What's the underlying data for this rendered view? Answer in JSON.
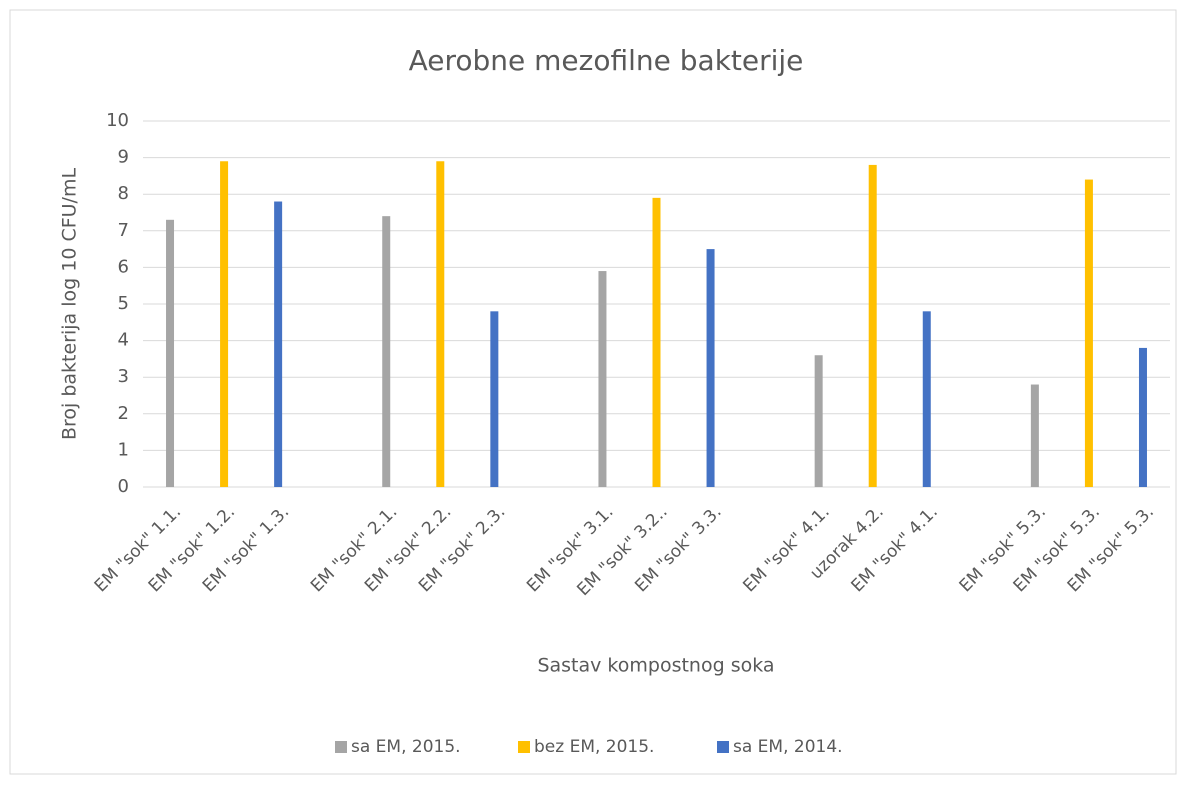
{
  "chart_data": {
    "type": "bar",
    "title": "Aerobne mezofilne bakterije",
    "x_label": "Sastav kompostnog soka",
    "y_label": "Broj bakterija log 10 CFU/mL",
    "categories": [
      "EM \"sok\" 1.1.",
      "EM \"sok\" 1.2.",
      "EM \"sok\" 1.3.",
      null,
      "EM \"sok\" 2.1.",
      "EM \"sok\" 2.2.",
      "EM \"sok\" 2.3.",
      null,
      "EM \"sok\" 3.1.",
      "EM \"sok\" 3.2..",
      "EM \"sok\" 3.3.",
      null,
      "EM \"sok\" 4.1.",
      "uzorak 4.2.",
      "EM \"sok\" 4.1.",
      null,
      "EM \"sok\" 5.3.",
      "EM \"sok\" 5.3.",
      "EM \"sok\" 5.3."
    ],
    "series": [
      {
        "name": "sa EM, 2015.",
        "color": "#a5a5a5",
        "values": [
          7.3,
          null,
          null,
          null,
          7.4,
          null,
          null,
          null,
          5.9,
          null,
          null,
          null,
          3.6,
          null,
          null,
          null,
          2.8,
          null,
          null
        ]
      },
      {
        "name": "bez EM, 2015.",
        "color": "#ffc000",
        "values": [
          null,
          8.9,
          null,
          null,
          null,
          8.9,
          null,
          null,
          null,
          7.9,
          null,
          null,
          null,
          8.8,
          null,
          null,
          null,
          8.4,
          null
        ]
      },
      {
        "name": "sa EM, 2014.",
        "color": "#4472c4",
        "values": [
          null,
          null,
          7.8,
          null,
          null,
          null,
          4.8,
          null,
          null,
          null,
          6.5,
          null,
          null,
          null,
          4.8,
          null,
          null,
          null,
          3.8
        ]
      }
    ],
    "ylim": [
      0,
      10
    ],
    "yticks": [
      0,
      1,
      2,
      3,
      4,
      5,
      6,
      7,
      8,
      9,
      10
    ],
    "grid": true,
    "legend": "bottom"
  }
}
